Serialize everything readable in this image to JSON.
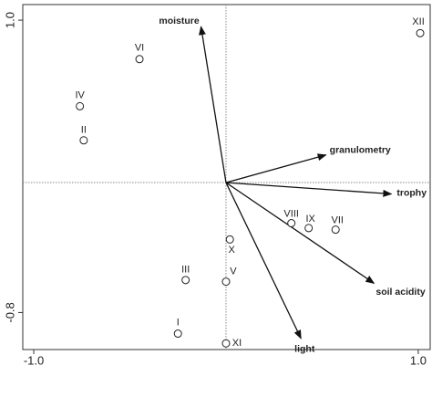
{
  "chart_data": {
    "type": "scatter",
    "xlim": [
      -1.057,
      1.062
    ],
    "ylim": [
      -1.028,
      1.096
    ],
    "xticks": [
      {
        "value": -1.0,
        "label": "-1.0"
      },
      {
        "value": 1.0,
        "label": "1.0"
      }
    ],
    "yticks": [
      {
        "value": -0.8,
        "label": "-0.8"
      },
      {
        "value": 1.0,
        "label": "1.0"
      }
    ],
    "points": {
      "labels": [
        "XII",
        "VI",
        "IV",
        "II",
        "VIII",
        "IX",
        "VII",
        "X",
        "III",
        "V",
        "I",
        "XI"
      ],
      "x": [
        1.01,
        -0.45,
        -0.76,
        -0.74,
        0.34,
        0.43,
        0.57,
        0.02,
        -0.21,
        0.0,
        -0.25,
        0.0
      ],
      "y": [
        0.92,
        0.76,
        0.47,
        0.26,
        -0.25,
        -0.28,
        -0.29,
        -0.35,
        -0.6,
        -0.61,
        -0.93,
        -0.99
      ]
    },
    "arrows": {
      "labels": [
        "moisture",
        "granulometry",
        "trophy",
        "soil acidity",
        "light"
      ],
      "x": [
        -0.13,
        0.52,
        0.86,
        0.77,
        0.39
      ],
      "y": [
        0.96,
        0.17,
        -0.07,
        -0.62,
        -0.96
      ]
    }
  }
}
